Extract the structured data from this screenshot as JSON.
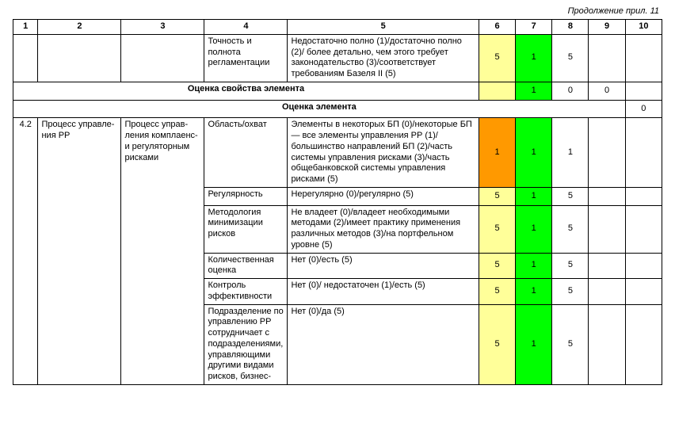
{
  "caption": "Продолжение прил. 11",
  "colors": {
    "yellow": "#ffff99",
    "green": "#00ff00",
    "orange": "#ff9900",
    "border": "#000000",
    "bg": "#ffffff",
    "text": "#000000"
  },
  "header": {
    "c1": "1",
    "c2": "2",
    "c3": "3",
    "c4": "4",
    "c5": "5",
    "c6": "6",
    "c7": "7",
    "c8": "8",
    "c9": "9",
    "c10": "10"
  },
  "row_top": {
    "c4": "Точность и полнота регламентации",
    "c5": "Недостаточно полно (1)/достаточно полно (2)/ более детально, чем этого требует законодательство (3)/соответ­ствует требованиям Базеля II (5)",
    "v6": "5",
    "v7": "1",
    "v8": "5"
  },
  "property_row": {
    "label": "Оценка свойства элемента",
    "v7": "1",
    "v8": "0",
    "v9": "0"
  },
  "element_row": {
    "label": "Оценка элемента",
    "v10": "0"
  },
  "section": {
    "num": "4.2",
    "col2": "Процесс управле­ния РР",
    "col3": "Процесс управ­ления компла­енс- и регуля­торным рисками",
    "rows": [
      {
        "c4": "Область/охват",
        "c5": "Элементы в некоторых БП (0)/некото­рые БП — все элементы управления РР (1)/большинство направлений БП (2)/часть системы управления рисками (3)/часть общебанковской системы управления рисками (5)",
        "v6": "1",
        "v7": "1",
        "v8": "1",
        "fill6": "orange",
        "fill7": "green"
      },
      {
        "c4": "Регулярность",
        "c5": "Нерегулярно (0)/регулярно (5)",
        "v6": "5",
        "v7": "1",
        "v8": "5",
        "fill6": "yellow",
        "fill7": "green"
      },
      {
        "c4": "Методология минимизации рисков",
        "c5": "Не владеет (0)/владеет необходимыми методами (2)/имеет практику приме­нения различных методов (3)/на порт­фельном уровне (5)",
        "v6": "5",
        "v7": "1",
        "v8": "5",
        "fill6": "yellow",
        "fill7": "green"
      },
      {
        "c4": "Количествен­ная оценка",
        "c5": "Нет (0)/есть (5)",
        "v6": "5",
        "v7": "1",
        "v8": "5",
        "fill6": "yellow",
        "fill7": "green"
      },
      {
        "c4": "Контроль эффектив­ности",
        "c5": "Нет (0)/ недостаточен (1)/есть (5)",
        "v6": "5",
        "v7": "1",
        "v8": "5",
        "fill6": "yellow",
        "fill7": "green"
      },
      {
        "c4": "Подразделение по управлению РР сотруднича­ет с подразде­лениями, управ­ляющими дру­гими видами рисков, бизнес-",
        "c5": "Нет (0)/да (5)",
        "v6": "5",
        "v7": "1",
        "v8": "5",
        "fill6": "yellow",
        "fill7": "green"
      }
    ]
  }
}
